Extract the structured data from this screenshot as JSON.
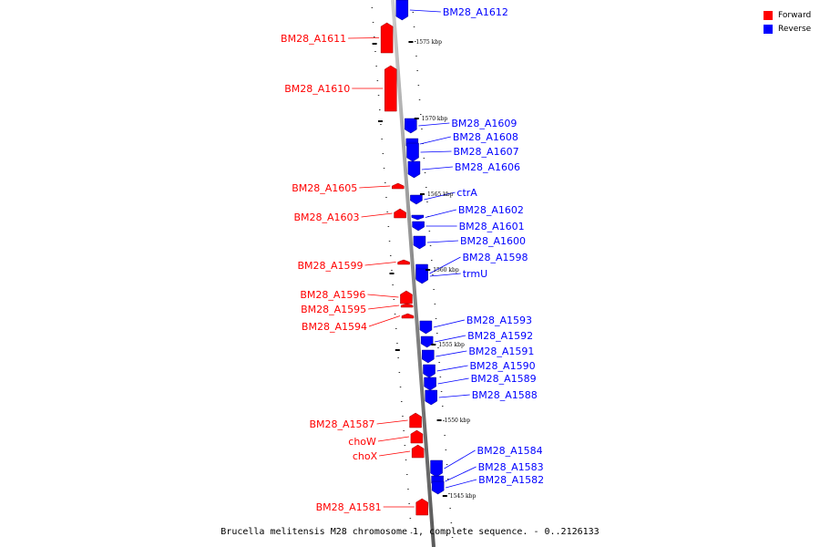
{
  "legend": {
    "items": [
      {
        "label": "Forward",
        "color": "#ff0000"
      },
      {
        "label": "Reverse",
        "color": "#0000ff"
      }
    ]
  },
  "caption": "Brucella melitensis M28 chromosome 1, complete sequence. - 0..2126133",
  "scale_ticks": [
    "1575 kbp",
    "1570 kbp",
    "1565 kbp",
    "1560 kbp",
    "1555 kbp",
    "1550 kbp",
    "1545 kbp"
  ],
  "forward_genes": [
    "BM28_A1611",
    "BM28_A1610",
    "BM28_A1605",
    "BM28_A1603",
    "BM28_A1599",
    "BM28_A1596",
    "BM28_A1595",
    "BM28_A1594",
    "BM28_A1587",
    "choW",
    "choX",
    "BM28_A1581"
  ],
  "reverse_genes": [
    "BM28_A1612",
    "BM28_A1609",
    "BM28_A1608",
    "BM28_A1607",
    "BM28_A1606",
    "ctrA",
    "BM28_A1602",
    "BM28_A1601",
    "BM28_A1600",
    "BM28_A1598",
    "trmU",
    "BM28_A1593",
    "BM28_A1592",
    "BM28_A1591",
    "BM28_A1590",
    "BM28_A1589",
    "BM28_A1588",
    "BM28_A1584",
    "BM28_A1583",
    "BM28_A1582"
  ],
  "colors": {
    "forward": "#ff0000",
    "reverse": "#0000ff",
    "backbone": "#777777"
  }
}
